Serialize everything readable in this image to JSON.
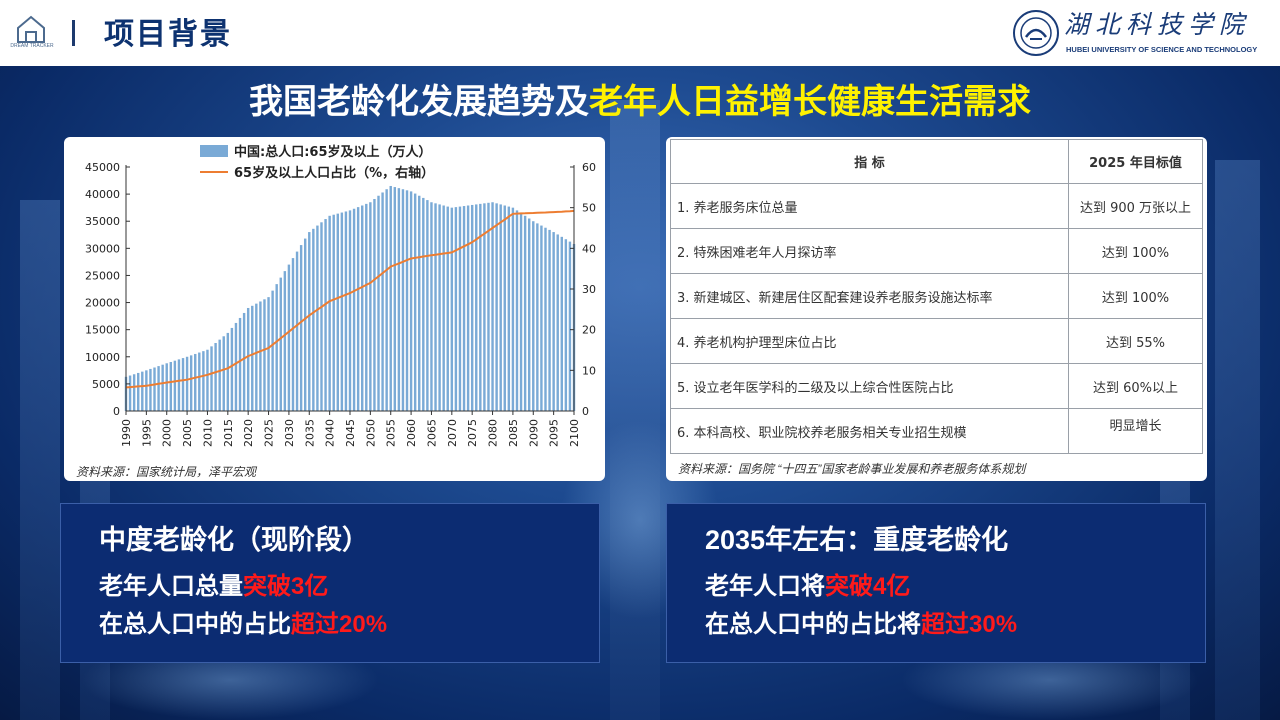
{
  "header": {
    "title": "项目背景",
    "logo_sub": "DREAM TRACKER",
    "university_cn": "湖北科技学院",
    "university_en": "HUBEI UNIVERSITY OF SCIENCE AND TECHNOLOGY"
  },
  "headline": {
    "white_part": "我国老龄化发展趋势及",
    "yellow_part": "老年人日益增长健康生活需求"
  },
  "chart_source": "资料来源：国家统计局，泽平宏观",
  "chart_data": {
    "type": "bar",
    "legend": [
      "中国:总人口:65岁及以上（万人）",
      "65岁及以上人口占比（%，右轴）"
    ],
    "legend_placement": "top-center",
    "x_tick_labels": [
      "1990",
      "1995",
      "2000",
      "2005",
      "2010",
      "2015",
      "2020",
      "2025",
      "2030",
      "2035",
      "2040",
      "2045",
      "2050",
      "2055",
      "2060",
      "2065",
      "2070",
      "2075",
      "2080",
      "2085",
      "2090",
      "2095",
      "2100"
    ],
    "y_left": {
      "range": [
        0,
        45000
      ],
      "ticks": [
        0,
        5000,
        10000,
        15000,
        20000,
        25000,
        30000,
        35000,
        40000,
        45000
      ]
    },
    "y_right": {
      "range": [
        0,
        60
      ],
      "ticks": [
        0,
        10,
        20,
        30,
        40,
        50,
        60
      ]
    },
    "grid": false,
    "series": [
      {
        "name": "中国:总人口:65岁及以上（万人）",
        "type": "bar",
        "axis": "left",
        "color": "#7aaad6",
        "x": [
          1990,
          1995,
          2000,
          2005,
          2010,
          2015,
          2020,
          2025,
          2030,
          2035,
          2040,
          2045,
          2050,
          2055,
          2060,
          2065,
          2070,
          2075,
          2080,
          2085,
          2090,
          2095,
          2100
        ],
        "values": [
          6300,
          7500,
          8800,
          10000,
          11300,
          14400,
          19000,
          21000,
          27000,
          33000,
          36000,
          37000,
          38500,
          41500,
          40500,
          38500,
          37500,
          38000,
          38500,
          37500,
          35000,
          33000,
          30800
        ]
      },
      {
        "name": "65岁及以上人口占比（%，右轴）",
        "type": "line",
        "axis": "right",
        "color": "#ed7d31",
        "x": [
          1990,
          1995,
          2000,
          2005,
          2010,
          2015,
          2020,
          2025,
          2030,
          2035,
          2040,
          2045,
          2050,
          2055,
          2060,
          2065,
          2070,
          2075,
          2080,
          2085,
          2090,
          2095,
          2100
        ],
        "values": [
          5.8,
          6.2,
          7.0,
          7.7,
          8.9,
          10.5,
          13.5,
          15.5,
          19.5,
          23.5,
          27.0,
          29.0,
          31.5,
          35.5,
          37.5,
          38.3,
          39.0,
          41.5,
          45.0,
          48.5,
          48.7,
          48.9,
          49.2
        ]
      }
    ]
  },
  "table": {
    "headers": [
      "指  标",
      "2025 年目标值"
    ],
    "rows": [
      {
        "indicator": "1. 养老服务床位总量",
        "target": "达到 900 万张以上"
      },
      {
        "indicator": "2. 特殊困难老年人月探访率",
        "target": "达到 100%"
      },
      {
        "indicator": "3. 新建城区、新建居住区配套建设养老服务设施达标率",
        "target": "达到 100%"
      },
      {
        "indicator": "4. 养老机构护理型床位占比",
        "target": "达到 55%"
      },
      {
        "indicator": "5. 设立老年医学科的二级及以上综合性医院占比",
        "target": "达到 60%以上"
      },
      {
        "indicator": "6. 本科高校、职业院校养老服务相关专业招生规模",
        "target": "明显增长"
      }
    ],
    "source": "资料来源：国务院 “十四五”国家老龄事业发展和养老服务体系规划"
  },
  "panel_left": {
    "heading": "中度老龄化（现阶段）",
    "line1_prefix": "老年人口总量",
    "line1_red": "突破3亿",
    "line2_prefix": "在总人口中的占比",
    "line2_red": "超过20%"
  },
  "panel_right": {
    "heading": "2035年左右：重度老龄化",
    "line1_prefix": "老年人口将",
    "line1_red": "突破4亿",
    "line2_prefix": "在总人口中的占比将",
    "line2_red": "超过30%"
  }
}
